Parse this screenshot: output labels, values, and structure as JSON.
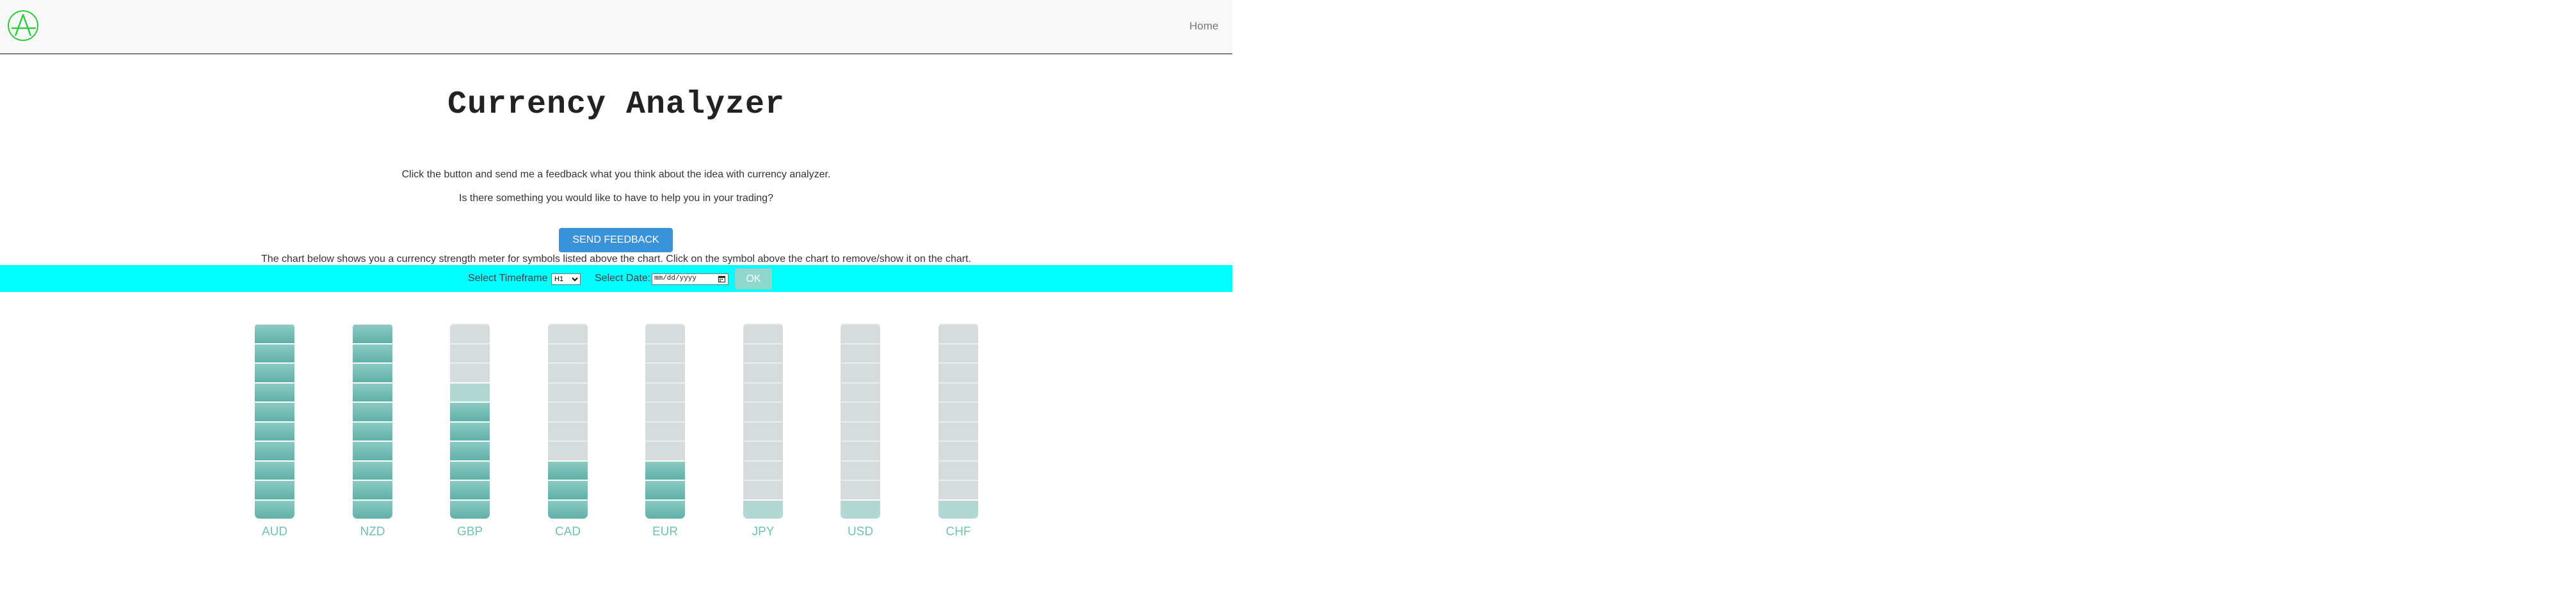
{
  "header": {
    "logo_letter": "A",
    "nav_home": "Home",
    "accent_color": "#2ecc40"
  },
  "main": {
    "title": "Currency Analyzer",
    "line1": "Click the button and send me a feedback what you think about the idea with currency analyzer.",
    "line2": "Is there something you would like to have to help you in your trading?",
    "feedback_button": "SEND FEEDBACK",
    "line3": "The chart below shows you a currency strength meter for symbols listed above the chart. Click on the symbol above the chart to remove/show it on the chart."
  },
  "toolbar": {
    "timeframe_label": "Select Timeframe",
    "timeframe_value": "H1",
    "date_label": "Select Date:",
    "date_placeholder": "mm/dd/yyyy",
    "ok_button": "OK",
    "bg_color": "#00ffff"
  },
  "meters": {
    "max_level": 10,
    "items": [
      {
        "symbol": "AUD",
        "level": 10
      },
      {
        "symbol": "NZD",
        "level": 10
      },
      {
        "symbol": "GBP",
        "level": 6.5
      },
      {
        "symbol": "CAD",
        "level": 3
      },
      {
        "symbol": "EUR",
        "level": 3
      },
      {
        "symbol": "JPY",
        "level": 0.8
      },
      {
        "symbol": "USD",
        "level": 0.8
      },
      {
        "symbol": "CHF",
        "level": 0.8
      }
    ]
  }
}
